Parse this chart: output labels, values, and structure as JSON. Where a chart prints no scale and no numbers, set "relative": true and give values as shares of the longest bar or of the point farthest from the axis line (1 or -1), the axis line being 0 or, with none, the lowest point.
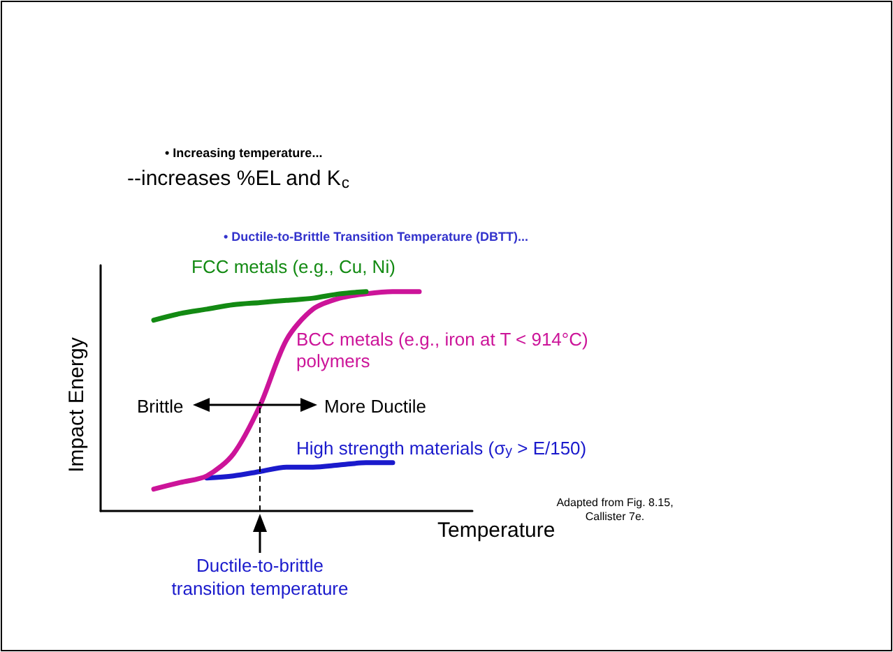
{
  "chart_data": {
    "type": "line",
    "relative": true,
    "xlabel": "Temperature",
    "ylabel": "Impact Energy",
    "categories": [
      null,
      null,
      null,
      null,
      null,
      null,
      null,
      null,
      null,
      null,
      null,
      null,
      null,
      null,
      null
    ],
    "series": [
      {
        "name": "FCC metals (e.g., Cu, Ni)",
        "color": "#138a13",
        "values": [
          null,
          null,
          0.87,
          0.9,
          0.92,
          0.94,
          0.95,
          0.96,
          0.97,
          0.99,
          1.0,
          null,
          null,
          null,
          null
        ]
      },
      {
        "name": "BCC metals (e.g., iron at T < 914°C)\npolymers",
        "color": "#cc1499",
        "values": [
          null,
          null,
          0.1,
          0.13,
          0.16,
          0.26,
          0.48,
          0.78,
          0.92,
          0.97,
          0.99,
          1.0,
          1.0,
          null,
          null
        ]
      },
      {
        "name": "High strength materials (σ$_{y}$ > E/150)",
        "color": "#1a1acc",
        "values": [
          null,
          null,
          null,
          null,
          0.15,
          0.16,
          0.18,
          0.2,
          0.2,
          0.21,
          0.22,
          0.22,
          null,
          null,
          null
        ]
      }
    ],
    "annotations": [
      "• Increasing temperature...",
      "--increases %EL and K$_{c}$",
      "• Ductile-to-Brittle Transition Temperature (DBTT)...",
      "Brittle",
      "More Ductile",
      "Adapted from Fig. 8.15,\nCallister 7e.",
      "Ductile-to-brittle\ntransition temperature"
    ],
    "legend": false,
    "grid": false,
    "marker": "none",
    "line_style": "solid"
  }
}
